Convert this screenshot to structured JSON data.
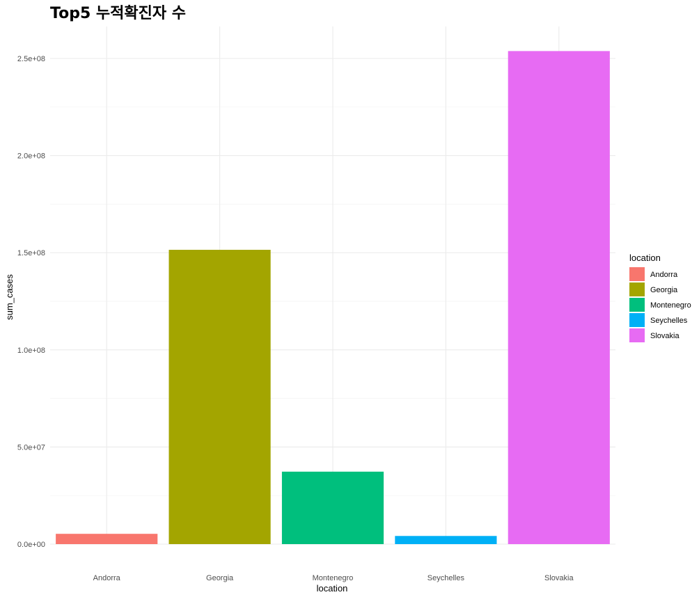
{
  "chart_data": {
    "type": "bar",
    "title": "Top5 누적확진자 수",
    "xlabel": "location",
    "ylabel": "sum_cases",
    "categories": [
      "Andorra",
      "Georgia",
      "Montenegro",
      "Seychelles",
      "Slovakia"
    ],
    "values": [
      5300000,
      151500000,
      37300000,
      4200000,
      253800000
    ],
    "colors": [
      "#F8766D",
      "#A3A500",
      "#00BF7D",
      "#00B0F6",
      "#E76BF3"
    ],
    "ylim": [
      0,
      265000000
    ],
    "yticks": [
      0,
      50000000,
      100000000,
      150000000,
      200000000,
      250000000
    ],
    "ytick_labels": [
      "0.0e+00",
      "5.0e+07",
      "1.0e+08",
      "1.5e+08",
      "2.0e+08",
      "2.5e+08"
    ],
    "grid": true,
    "legend": {
      "title": "location",
      "placement": "right",
      "entries": [
        "Andorra",
        "Georgia",
        "Montenegro",
        "Seychelles",
        "Slovakia"
      ]
    }
  }
}
